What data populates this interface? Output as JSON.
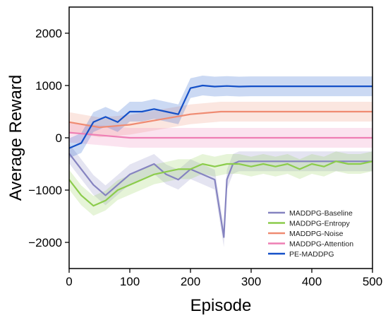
{
  "chart_data": {
    "type": "line",
    "xlabel": "Episode",
    "ylabel": "Average Reward",
    "xlim": [
      0,
      500
    ],
    "ylim": [
      -2500,
      2500
    ],
    "xticks": [
      0,
      100,
      200,
      300,
      400,
      500
    ],
    "yticks": [
      -2000,
      -1000,
      0,
      1000,
      2000
    ],
    "xtick_labels": [
      "0",
      "100",
      "200",
      "300",
      "400",
      "500"
    ],
    "ytick_labels": [
      "−2000",
      "−1000",
      "0",
      "1000",
      "2000"
    ],
    "grid": false,
    "legend_position": "bottom-right",
    "series": [
      {
        "name": "MADDPG-Baseline",
        "color": "#8583c0",
        "x": [
          0,
          20,
          40,
          60,
          80,
          100,
          120,
          140,
          160,
          180,
          200,
          220,
          240,
          255,
          260,
          270,
          280,
          300,
          350,
          400,
          450,
          500
        ],
        "y": [
          -300,
          -600,
          -900,
          -1100,
          -900,
          -700,
          -600,
          -500,
          -700,
          -800,
          -600,
          -700,
          -800,
          -1900,
          -800,
          -500,
          -450,
          -450,
          -450,
          -450,
          -450,
          -450
        ]
      },
      {
        "name": "MADDPG-Entropy",
        "color": "#8ccc4c",
        "x": [
          0,
          20,
          40,
          60,
          80,
          100,
          120,
          140,
          160,
          180,
          200,
          220,
          240,
          260,
          280,
          300,
          320,
          340,
          360,
          380,
          400,
          420,
          440,
          460,
          480,
          500
        ],
        "y": [
          -800,
          -1100,
          -1300,
          -1200,
          -1000,
          -900,
          -800,
          -700,
          -650,
          -600,
          -600,
          -500,
          -550,
          -500,
          -500,
          -550,
          -500,
          -550,
          -500,
          -600,
          -500,
          -550,
          -450,
          -500,
          -500,
          -450
        ]
      },
      {
        "name": "MADDPG-Noise",
        "color": "#ef8b72",
        "x": [
          0,
          50,
          100,
          150,
          200,
          250,
          300,
          350,
          400,
          450,
          500
        ],
        "y": [
          300,
          200,
          250,
          350,
          450,
          500,
          500,
          500,
          500,
          500,
          500
        ]
      },
      {
        "name": "MADDPG-Attention",
        "color": "#ee7fb4",
        "x": [
          0,
          50,
          100,
          150,
          200,
          250,
          300,
          350,
          400,
          450,
          500
        ],
        "y": [
          100,
          50,
          0,
          0,
          0,
          0,
          0,
          0,
          0,
          0,
          0
        ]
      },
      {
        "name": "PE-MADDPG",
        "color": "#1450c8",
        "x": [
          0,
          20,
          40,
          60,
          80,
          100,
          120,
          140,
          160,
          180,
          200,
          220,
          240,
          260,
          280,
          300,
          350,
          400,
          450,
          500
        ],
        "y": [
          -200,
          -100,
          300,
          400,
          300,
          500,
          500,
          550,
          500,
          450,
          950,
          1000,
          980,
          990,
          980,
          985,
          985,
          985,
          985,
          985
        ]
      }
    ]
  }
}
